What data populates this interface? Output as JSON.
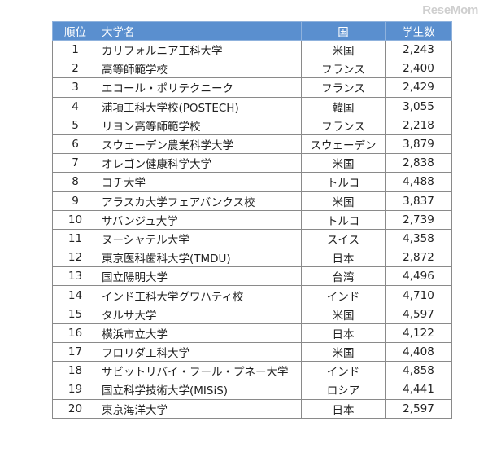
{
  "watermark": "ReseMom",
  "table": {
    "headers": {
      "rank": "順位",
      "name": "大学名",
      "country": "国",
      "students": "学生数"
    },
    "rows": [
      {
        "rank": "1",
        "name": "カリフォルニア工科大学",
        "country": "米国",
        "students": "2,243"
      },
      {
        "rank": "2",
        "name": "高等師範学校",
        "country": "フランス",
        "students": "2,400"
      },
      {
        "rank": "3",
        "name": "エコール・ポリテクニーク",
        "country": "フランス",
        "students": "2,429"
      },
      {
        "rank": "4",
        "name": "浦項工科大学校(POSTECH)",
        "country": "韓国",
        "students": "3,055"
      },
      {
        "rank": "5",
        "name": "リヨン高等師範学校",
        "country": "フランス",
        "students": "2,218"
      },
      {
        "rank": "6",
        "name": "スウェーデン農業科学大学",
        "country": "スウェーデン",
        "students": "3,879"
      },
      {
        "rank": "7",
        "name": "オレゴン健康科学大学",
        "country": "米国",
        "students": "2,838"
      },
      {
        "rank": "8",
        "name": "コチ大学",
        "country": "トルコ",
        "students": "4,488"
      },
      {
        "rank": "9",
        "name": "アラスカ大学フェアバンクス校",
        "country": "米国",
        "students": "3,837"
      },
      {
        "rank": "10",
        "name": "サバンジュ大学",
        "country": "トルコ",
        "students": "2,739"
      },
      {
        "rank": "11",
        "name": "ヌーシャテル大学",
        "country": "スイス",
        "students": "4,358"
      },
      {
        "rank": "12",
        "name": "東京医科歯科大学(TMDU)",
        "country": "日本",
        "students": "2,872"
      },
      {
        "rank": "13",
        "name": "国立陽明大学",
        "country": "台湾",
        "students": "4,496"
      },
      {
        "rank": "14",
        "name": "インド工科大学グワハティ校",
        "country": "インド",
        "students": "4,710"
      },
      {
        "rank": "15",
        "name": "タルサ大学",
        "country": "米国",
        "students": "4,597"
      },
      {
        "rank": "16",
        "name": "横浜市立大学",
        "country": "日本",
        "students": "4,122"
      },
      {
        "rank": "17",
        "name": "フロリダ工科大学",
        "country": "米国",
        "students": "4,408"
      },
      {
        "rank": "18",
        "name": "サビットリバイ・フール・プネー大学",
        "country": "インド",
        "students": "4,858"
      },
      {
        "rank": "19",
        "name": "国立科学技術大学(MISiS)",
        "country": "ロシア",
        "students": "4,441"
      },
      {
        "rank": "20",
        "name": "東京海洋大学",
        "country": "日本",
        "students": "2,597"
      }
    ]
  }
}
